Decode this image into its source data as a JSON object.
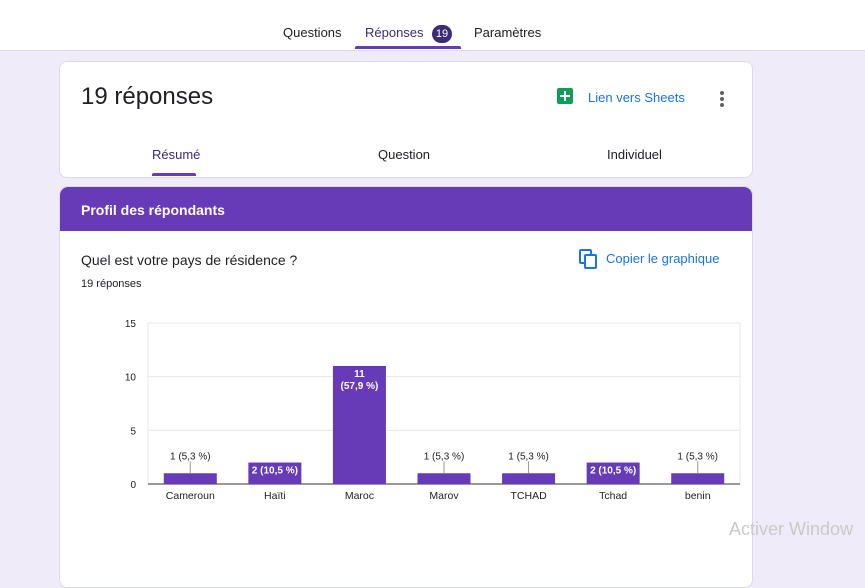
{
  "top_tabs": {
    "questions": "Questions",
    "responses": "Réponses",
    "responses_badge": "19",
    "settings": "Paramètres"
  },
  "summary": {
    "title": "19 réponses",
    "sheets_link": "Lien vers Sheets",
    "sheets_icon": "google-sheets-icon",
    "more_icon": "more-vert-icon",
    "tabs": [
      "Résumé",
      "Question",
      "Individuel"
    ]
  },
  "section": {
    "header": "Profil des répondants",
    "question": "Quel est votre pays de résidence ?",
    "response_count": "19 réponses",
    "copy_chart": "Copier le graphique",
    "copy_icon": "copy-icon"
  },
  "colors": {
    "accent": "#673ab7",
    "badge": "#3c2a7a",
    "link": "#1a73e8",
    "sheets": "#0f9d58"
  },
  "chart_data": {
    "type": "bar",
    "categories": [
      "Cameroun",
      "Haïti",
      "Maroc",
      "Marov",
      "TCHAD",
      "Tchad",
      "benin"
    ],
    "values": [
      1,
      2,
      11,
      1,
      1,
      2,
      1
    ],
    "labels": [
      [
        "1 (5,3 %)"
      ],
      [
        "2 (10,5 %)"
      ],
      [
        "11",
        "(57,9 %)"
      ],
      [
        "1 (5,3 %)"
      ],
      [
        "1 (5,3 %)"
      ],
      [
        "2 (10,5 %)"
      ],
      [
        "1 (5,3 %)"
      ]
    ],
    "label_inside": [
      false,
      true,
      true,
      false,
      false,
      true,
      false
    ],
    "ylim": [
      0,
      15
    ],
    "yticks": [
      0,
      5,
      10,
      15
    ],
    "grid": true,
    "color": "#673ab7"
  },
  "watermark": "Activer Window"
}
